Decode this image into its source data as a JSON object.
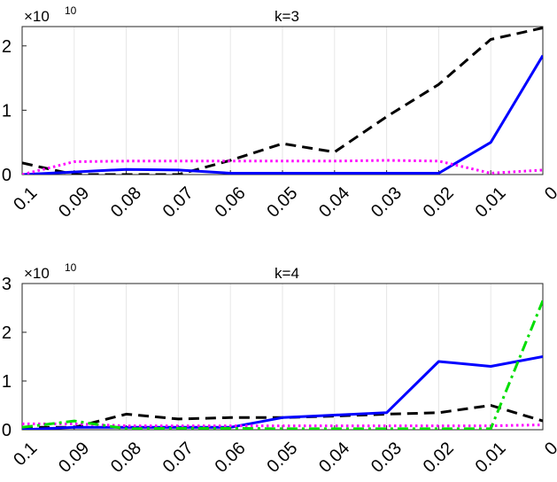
{
  "chart_data": [
    {
      "type": "line",
      "title": "k=3",
      "exponent_label": {
        "base": "×10",
        "power": "10"
      },
      "x": [
        "0.1",
        "0.09",
        "0.08",
        "0.07",
        "0.06",
        "0.05",
        "0.04",
        "0.03",
        "0.02",
        "0.01",
        "0"
      ],
      "x_reversed": true,
      "ylim": [
        0,
        2.3
      ],
      "yticks": [
        "0",
        "1",
        "2"
      ],
      "grid": "vertical",
      "series": [
        {
          "style": "dashed",
          "color": "#000000",
          "values": [
            0.18,
            0.0,
            0.0,
            0.0,
            0.22,
            0.48,
            0.35,
            0.9,
            1.4,
            2.1,
            2.28
          ]
        },
        {
          "style": "solid",
          "color": "#0000ff",
          "values": [
            0.0,
            0.04,
            0.08,
            0.07,
            0.02,
            0.02,
            0.02,
            0.02,
            0.02,
            0.5,
            1.85
          ]
        },
        {
          "style": "dotted",
          "color": "#ff00ff",
          "values": [
            0.0,
            0.2,
            0.21,
            0.21,
            0.21,
            0.21,
            0.21,
            0.22,
            0.21,
            0.02,
            0.07
          ]
        }
      ]
    },
    {
      "type": "line",
      "title": "k=4",
      "exponent_label": {
        "base": "×10",
        "power": "10"
      },
      "x": [
        "0.1",
        "0.09",
        "0.08",
        "0.07",
        "0.06",
        "0.05",
        "0.04",
        "0.03",
        "0.02",
        "0.01",
        "0"
      ],
      "x_reversed": true,
      "ylim": [
        0,
        3
      ],
      "yticks": [
        "0",
        "1",
        "2",
        "3"
      ],
      "grid": "vertical",
      "series": [
        {
          "style": "dashed",
          "color": "#000000",
          "values": [
            0.05,
            0.05,
            0.32,
            0.22,
            0.25,
            0.25,
            0.28,
            0.32,
            0.35,
            0.5,
            0.18
          ]
        },
        {
          "style": "solid",
          "color": "#0000ff",
          "values": [
            0.0,
            0.05,
            0.05,
            0.05,
            0.05,
            0.25,
            0.3,
            0.35,
            1.4,
            1.3,
            1.5
          ]
        },
        {
          "style": "dotted",
          "color": "#ff00ff",
          "values": [
            0.12,
            0.12,
            0.08,
            0.08,
            0.08,
            0.08,
            0.08,
            0.08,
            0.08,
            0.08,
            0.1
          ]
        },
        {
          "style": "dashdot",
          "color": "#00dd00",
          "values": [
            0.05,
            0.18,
            0.02,
            0.03,
            0.03,
            0.02,
            0.02,
            0.02,
            0.02,
            0.02,
            2.65
          ]
        }
      ]
    }
  ]
}
